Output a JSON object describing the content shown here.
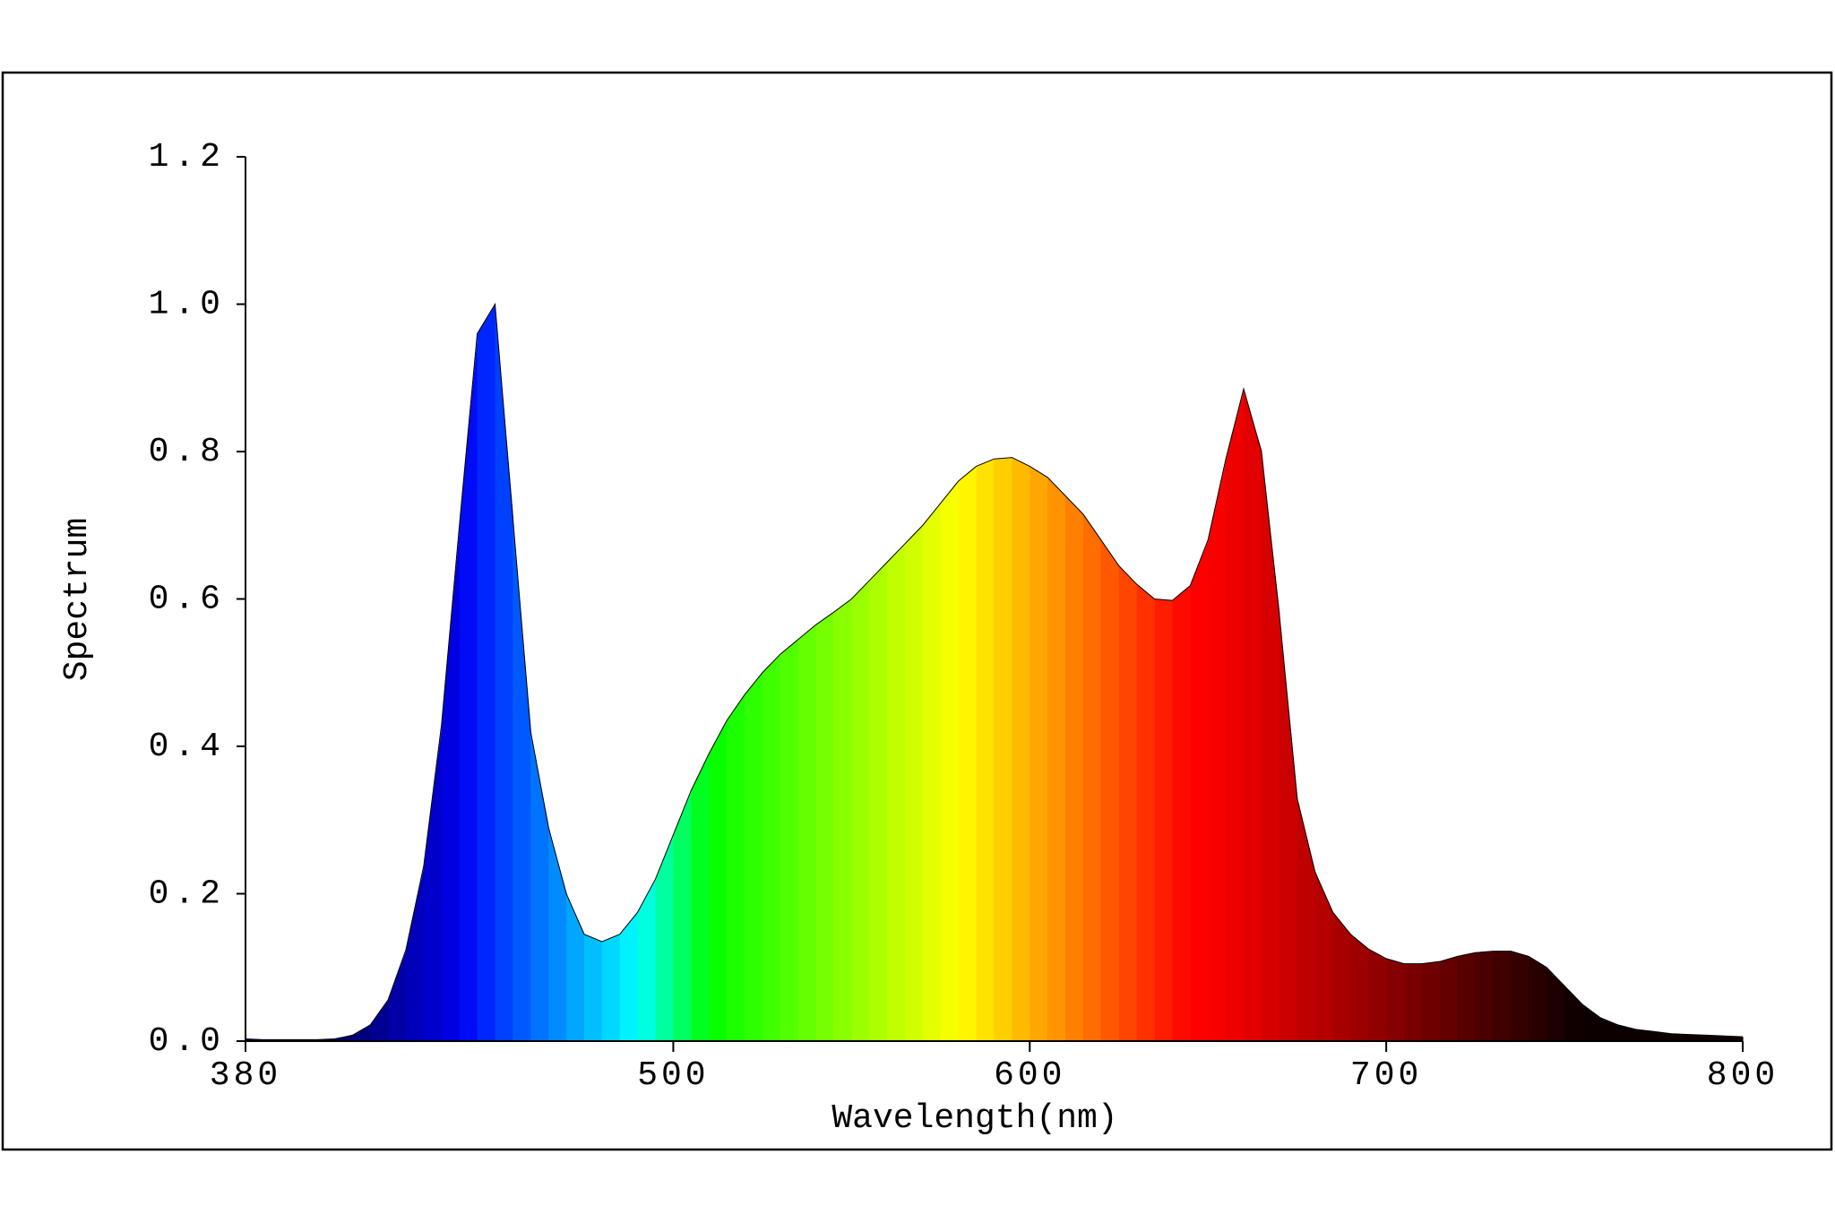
{
  "chart_data": {
    "type": "spectrum-area",
    "xlabel": "Wavelength(nm)",
    "ylabel": "Spectrum",
    "x": [
      380,
      385,
      390,
      395,
      400,
      405,
      410,
      415,
      420,
      425,
      430,
      435,
      440,
      445,
      450,
      455,
      460,
      465,
      470,
      475,
      480,
      485,
      490,
      495,
      500,
      505,
      510,
      515,
      520,
      525,
      530,
      535,
      540,
      545,
      550,
      555,
      560,
      565,
      570,
      575,
      580,
      585,
      590,
      595,
      600,
      605,
      610,
      615,
      620,
      625,
      630,
      635,
      640,
      645,
      650,
      655,
      660,
      665,
      670,
      675,
      680,
      685,
      690,
      695,
      700,
      705,
      710,
      715,
      720,
      725,
      730,
      735,
      740,
      745,
      750,
      755,
      760,
      765,
      770,
      775,
      780,
      785,
      790,
      795,
      800
    ],
    "values": [
      0.003,
      0.002,
      0.002,
      0.002,
      0.002,
      0.003,
      0.008,
      0.022,
      0.056,
      0.124,
      0.238,
      0.43,
      0.7,
      0.96,
      1.0,
      0.71,
      0.42,
      0.29,
      0.2,
      0.145,
      0.135,
      0.145,
      0.175,
      0.22,
      0.28,
      0.34,
      0.39,
      0.435,
      0.47,
      0.5,
      0.525,
      0.545,
      0.565,
      0.582,
      0.6,
      0.625,
      0.65,
      0.675,
      0.7,
      0.73,
      0.76,
      0.78,
      0.79,
      0.792,
      0.78,
      0.765,
      0.74,
      0.715,
      0.68,
      0.645,
      0.62,
      0.6,
      0.598,
      0.618,
      0.68,
      0.79,
      0.885,
      0.8,
      0.58,
      0.33,
      0.23,
      0.175,
      0.145,
      0.125,
      0.112,
      0.105,
      0.105,
      0.108,
      0.115,
      0.12,
      0.122,
      0.122,
      0.115,
      0.1,
      0.075,
      0.05,
      0.032,
      0.022,
      0.016,
      0.013,
      0.01,
      0.009,
      0.008,
      0.007,
      0.006
    ],
    "xlim": [
      380,
      800
    ],
    "xticks": [
      380,
      500,
      600,
      700,
      800
    ],
    "ylim": [
      0,
      1.2
    ],
    "yticks": [
      {
        "value": 0,
        "label": "0.0"
      },
      0.2,
      0.4,
      0.6,
      0.8,
      {
        "value": 1,
        "label": "1.0"
      },
      1.2
    ]
  }
}
